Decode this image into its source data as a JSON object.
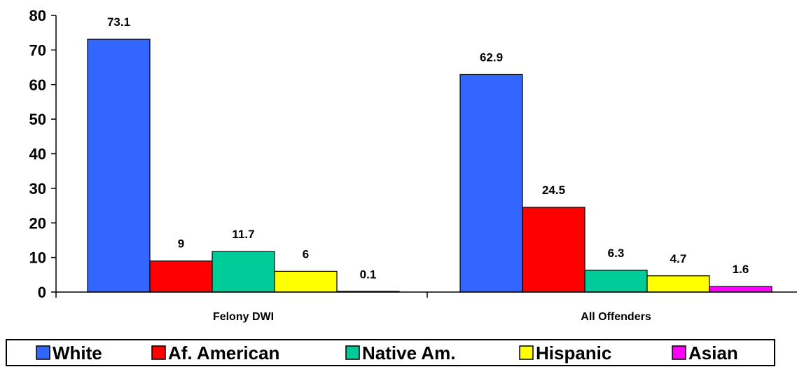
{
  "chart_data": {
    "type": "bar",
    "title": "",
    "xlabel": "",
    "ylabel": "",
    "categories": [
      "Felony DWI",
      "All Offenders"
    ],
    "series": [
      {
        "name": "White",
        "color": "#3366FF",
        "values": [
          73.1,
          62.9
        ],
        "labels": [
          "73.1",
          "62.9"
        ]
      },
      {
        "name": "Af. American",
        "color": "#FF0000",
        "values": [
          9,
          24.5
        ],
        "labels": [
          "9",
          "24.5"
        ]
      },
      {
        "name": "Native Am.",
        "color": "#00CC99",
        "values": [
          11.7,
          6.3
        ],
        "labels": [
          "11.7",
          "6.3"
        ]
      },
      {
        "name": "Hispanic",
        "color": "#FFFF00",
        "values": [
          6,
          4.7
        ],
        "labels": [
          "6",
          "4.7"
        ]
      },
      {
        "name": "Asian",
        "color": "#FF00FF",
        "values": [
          0.1,
          1.6
        ],
        "labels": [
          "0.1",
          "1.6"
        ]
      }
    ],
    "ylim": [
      0,
      80
    ],
    "yticks": [
      "0",
      "10",
      "20",
      "30",
      "40",
      "50",
      "60",
      "70",
      "80"
    ],
    "grid": false,
    "legend_position": "bottom"
  }
}
